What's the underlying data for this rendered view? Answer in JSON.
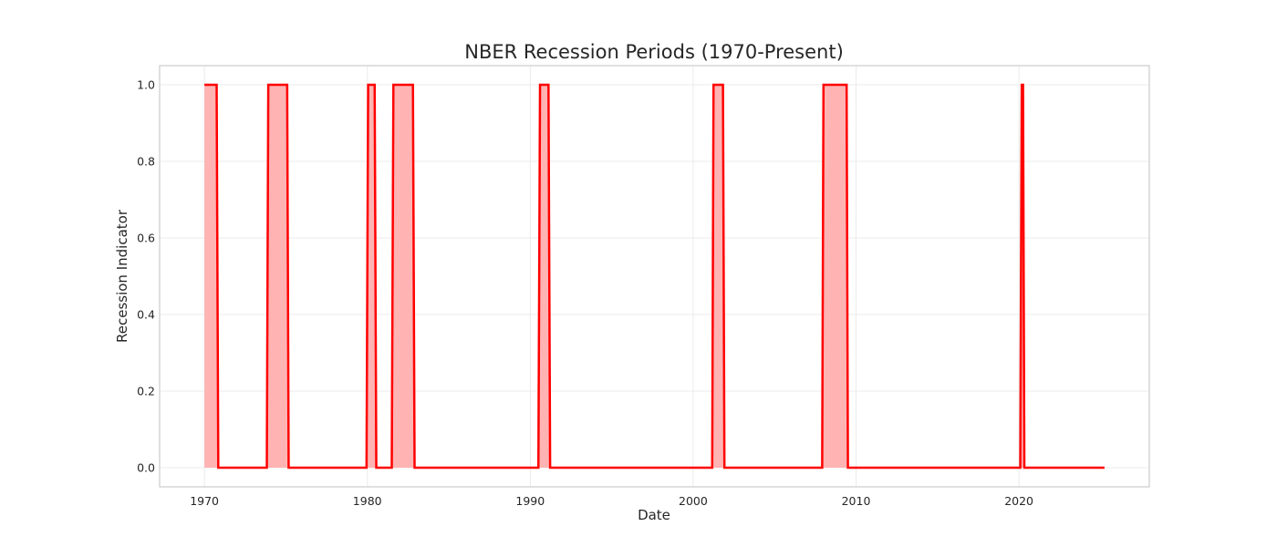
{
  "chart_data": {
    "type": "area",
    "title": "NBER Recession Periods (1970-Present)",
    "xlabel": "Date",
    "ylabel": "Recession Indicator",
    "x_ticks": [
      1970,
      1980,
      1990,
      2000,
      2010,
      2020
    ],
    "y_ticks": [
      0.0,
      0.2,
      0.4,
      0.6,
      0.8,
      1.0
    ],
    "y_tick_labels": [
      "0.0",
      "0.2",
      "0.4",
      "0.6",
      "0.8",
      "1.0"
    ],
    "xlim": [
      1967.25,
      2028.0
    ],
    "ylim": [
      -0.05,
      1.05
    ],
    "grid": true,
    "colors": {
      "line": "#ff0000",
      "fill": "#ffb3b3",
      "grid": "#ebebeb",
      "frame": "#cccccc"
    },
    "series": [
      {
        "x": [
          1970.0,
          1970.75,
          1970.85,
          1973.83,
          1973.92,
          1975.08,
          1975.17,
          1979.95,
          1980.05,
          1980.45,
          1980.55,
          1981.5,
          1981.6,
          1982.8,
          1982.9,
          1990.5,
          1990.6,
          1991.12,
          1991.22,
          2001.17,
          2001.25,
          2001.83,
          2001.92,
          2007.92,
          2008.0,
          2009.42,
          2009.5,
          2020.08,
          2020.17,
          2020.25,
          2020.33,
          2025.25
        ],
        "values": [
          1,
          1,
          0,
          0,
          1,
          1,
          0,
          0,
          1,
          1,
          0,
          0,
          1,
          1,
          0,
          0,
          1,
          1,
          0,
          0,
          1,
          1,
          0,
          0,
          1,
          1,
          0,
          0,
          1,
          1,
          0,
          0
        ]
      }
    ]
  }
}
